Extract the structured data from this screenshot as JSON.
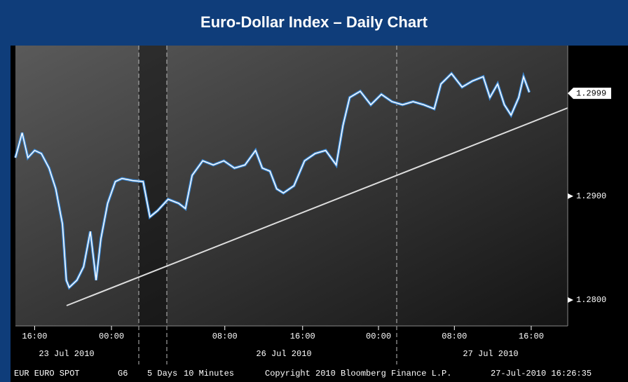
{
  "chart_data": {
    "type": "line",
    "title": "Euro-Dollar Index – Daily Chart",
    "series": [
      {
        "name": "EUR",
        "color": "#ffffff",
        "x": [
          14.0,
          14.7,
          15.3,
          16.0,
          16.7,
          17.5,
          18.2,
          18.9,
          19.3,
          19.6,
          20.4,
          21.1,
          21.8,
          22.4,
          22.9,
          23.6,
          24.4,
          25.1,
          26.2,
          27.3,
          28.0,
          28.8,
          29.9,
          31.0,
          31.7,
          32.4,
          33.5,
          34.6,
          35.7,
          36.8,
          37.9,
          39.0,
          39.7,
          40.5,
          41.2,
          41.9,
          43.0,
          44.1,
          45.2,
          46.3,
          47.4,
          48.1,
          48.8,
          49.9,
          51.0,
          52.1,
          53.2,
          54.3,
          55.4,
          56.5,
          57.6,
          58.3,
          59.4,
          60.5,
          61.6,
          62.7,
          63.4,
          64.2,
          64.9,
          65.6,
          66.4,
          66.9,
          67.5
        ],
        "values": [
          1.2937,
          1.2961,
          1.2937,
          1.2944,
          1.2941,
          1.2927,
          1.2907,
          1.2873,
          1.2819,
          1.2812,
          1.2819,
          1.2832,
          1.2866,
          1.2819,
          1.2859,
          1.2893,
          1.2914,
          1.2917,
          1.2915,
          1.2914,
          1.288,
          1.2886,
          1.2897,
          1.2893,
          1.2888,
          1.292,
          1.2934,
          1.293,
          1.2934,
          1.2927,
          1.293,
          1.2944,
          1.2927,
          1.2924,
          1.2907,
          1.2903,
          1.291,
          1.2934,
          1.2941,
          1.2944,
          1.293,
          1.2968,
          1.2995,
          1.3001,
          1.2988,
          1.2998,
          1.2991,
          1.2988,
          1.2991,
          1.2988,
          1.2984,
          1.3008,
          1.3018,
          1.3005,
          1.3011,
          1.3015,
          1.2995,
          1.3008,
          1.2988,
          1.2978,
          1.2995,
          1.3015,
          1.3
        ]
      }
    ],
    "xlim": [
      14,
      71.5
    ],
    "xticks": [
      {
        "value": 16,
        "label": "16:00"
      },
      {
        "value": 24,
        "label": "00:00"
      },
      {
        "value": 35.8,
        "label": "08:00"
      },
      {
        "value": 43.9,
        "label": "16:00"
      },
      {
        "value": 51.8,
        "label": "00:00"
      },
      {
        "value": 59.7,
        "label": "08:00"
      },
      {
        "value": 67.7,
        "label": "16:00"
      }
    ],
    "date_labels": [
      "23 Jul 2010",
      "26 Jul 2010",
      "27 Jul 2010"
    ],
    "ylim": [
      1.2775,
      1.3045
    ],
    "yticks": [
      {
        "value": 1.28,
        "label": "1.2800"
      },
      {
        "value": 1.29,
        "label": "1.2900"
      }
    ],
    "last_price": 1.2999,
    "footer": [
      "EUR EURO SPOT",
      "G6",
      "5 Days",
      "10 Minutes",
      "Copyright 2010 Bloomberg Finance L.P.",
      "27-Jul-2010 16:26:35"
    ]
  }
}
